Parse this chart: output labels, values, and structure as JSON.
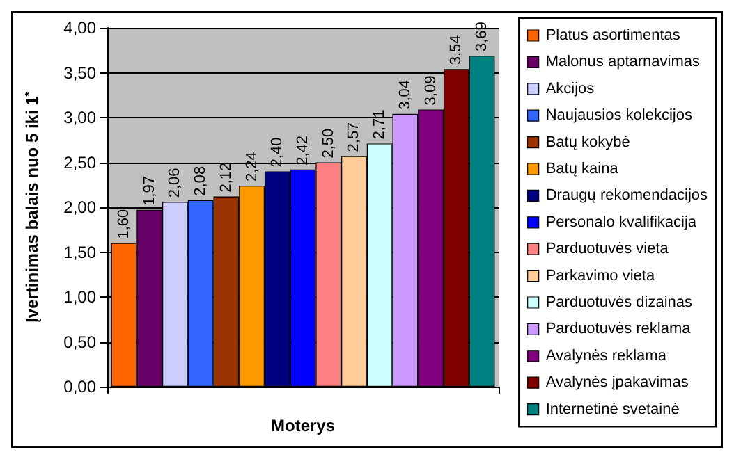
{
  "chart_data": {
    "type": "bar",
    "xlabel": "Moterys",
    "ylabel": "Įvertinimas balais nuo 5 iki 1$^{*}$",
    "categories": [
      null
    ],
    "series": [
      {
        "name": "Platus asortimentas",
        "color": "#ff6600",
        "values": [
          1.6
        ],
        "value_labels": [
          "1,60"
        ]
      },
      {
        "name": "Malonus aptarnavimas",
        "color": "#660066",
        "values": [
          1.97
        ],
        "value_labels": [
          "1,97"
        ]
      },
      {
        "name": "Akcijos",
        "color": "#ccccff",
        "values": [
          2.06
        ],
        "value_labels": [
          "2,06"
        ]
      },
      {
        "name": "Naujausios kolekcijos",
        "color": "#3366ff",
        "values": [
          2.08
        ],
        "value_labels": [
          "2,08"
        ]
      },
      {
        "name": "Batų kokybė",
        "color": "#993300",
        "values": [
          2.12
        ],
        "value_labels": [
          "2,12"
        ]
      },
      {
        "name": "Batų kaina",
        "color": "#ff9900",
        "values": [
          2.24
        ],
        "value_labels": [
          "2,24"
        ]
      },
      {
        "name": "Draugų rekomendacijos",
        "color": "#000080",
        "values": [
          2.4
        ],
        "value_labels": [
          "2,40"
        ]
      },
      {
        "name": "Personalo kvalifikacija",
        "color": "#0000ff",
        "values": [
          2.42
        ],
        "value_labels": [
          "2,42"
        ]
      },
      {
        "name": "Parduotuvės vieta",
        "color": "#ff8080",
        "values": [
          2.5
        ],
        "value_labels": [
          "2,50"
        ]
      },
      {
        "name": "Parkavimo vieta",
        "color": "#ffcc99",
        "values": [
          2.57
        ],
        "value_labels": [
          "2,57"
        ]
      },
      {
        "name": "Parduotuvės dizainas",
        "color": "#ccffff",
        "values": [
          2.71
        ],
        "value_labels": [
          "2,71"
        ]
      },
      {
        "name": "Parduotuvės reklama",
        "color": "#cc99ff",
        "values": [
          3.04
        ],
        "value_labels": [
          "3,04"
        ]
      },
      {
        "name": "Avalynės reklama",
        "color": "#800080",
        "values": [
          3.09
        ],
        "value_labels": [
          "3,09"
        ]
      },
      {
        "name": "Avalynės įpakavimas",
        "color": "#800000",
        "values": [
          3.54
        ],
        "value_labels": [
          "3,54"
        ]
      },
      {
        "name": "Internetinė svetainė",
        "color": "#008080",
        "values": [
          3.69
        ],
        "value_labels": [
          "3,69"
        ]
      }
    ],
    "ylim": [
      0,
      4
    ],
    "yticks": [
      {
        "value": 0,
        "label": "0,00"
      },
      {
        "value": 0.5,
        "label": "0,50"
      },
      {
        "value": 1,
        "label": "1,00"
      },
      {
        "value": 1.5,
        "label": "1,50"
      },
      {
        "value": 2,
        "label": "2,00"
      },
      {
        "value": 2.5,
        "label": "2,50"
      },
      {
        "value": 3,
        "label": "3,00"
      },
      {
        "value": 3.5,
        "label": "3,50"
      },
      {
        "value": 4,
        "label": "4,00"
      }
    ],
    "grid": "y",
    "legend": "right"
  }
}
